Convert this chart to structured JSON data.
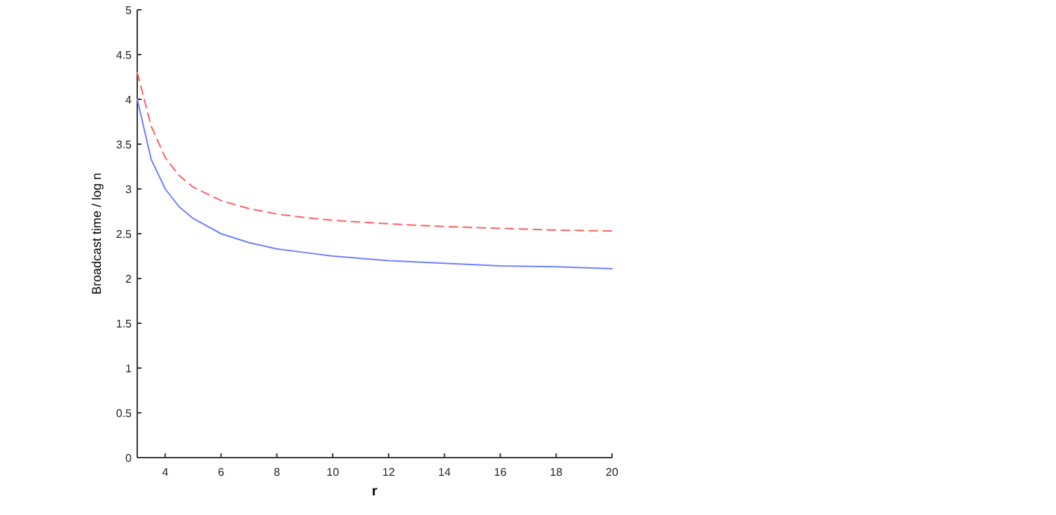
{
  "chart_data": {
    "type": "line",
    "xlabel": "r",
    "ylabel": "Broadcast time / log n",
    "xlim": [
      3,
      20
    ],
    "xticks": [
      4,
      6,
      8,
      10,
      12,
      14,
      16,
      18,
      20
    ],
    "ylim": [
      0,
      5
    ],
    "yticks": [
      0,
      0.5,
      1,
      1.5,
      2,
      2.5,
      3,
      3.5,
      4,
      4.5,
      5
    ],
    "grid": false,
    "series": [
      {
        "color": "#6f7fff",
        "line_style": "solid",
        "x": [
          3,
          3.5,
          4,
          4.5,
          5,
          6,
          7,
          8,
          9,
          10,
          12,
          14,
          16,
          18,
          20
        ],
        "values": [
          4.0,
          3.33,
          3.0,
          2.8,
          2.67,
          2.5,
          2.4,
          2.33,
          2.29,
          2.25,
          2.2,
          2.17,
          2.14,
          2.13,
          2.11
        ]
      },
      {
        "color": "#ff6060",
        "line_style": "dashed",
        "x": [
          3,
          3.5,
          4,
          4.5,
          5,
          6,
          7,
          8,
          9,
          10,
          12,
          14,
          16,
          18,
          20
        ],
        "values": [
          4.3,
          3.7,
          3.35,
          3.15,
          3.02,
          2.87,
          2.78,
          2.72,
          2.68,
          2.65,
          2.61,
          2.58,
          2.56,
          2.54,
          2.53
        ]
      }
    ]
  }
}
